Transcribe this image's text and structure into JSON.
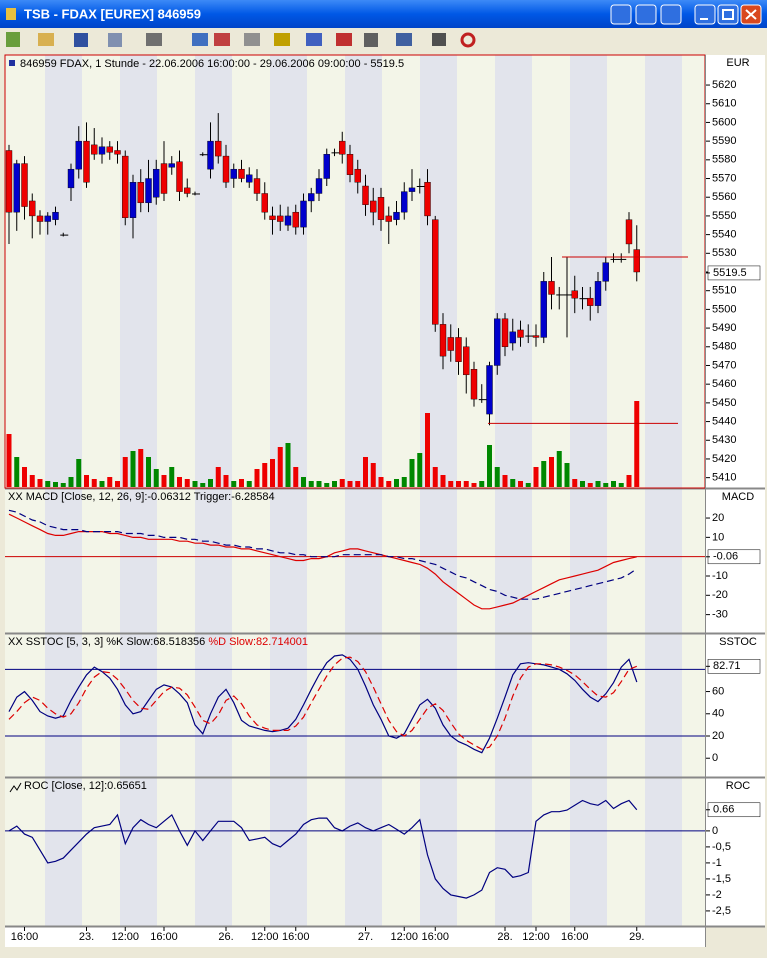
{
  "window": {
    "title": "TSB - FDAX [EUREX] 846959"
  },
  "chart_data": [
    {
      "type": "candlestick",
      "title": "846959  FDAX, 1 Stunde - 22.06.2006 16:00:00 - 29.06.2006 09:00:00 - 5519.5",
      "axis_label": "EUR",
      "up_color": "#0000cc",
      "down_color": "#ee0000",
      "volume_up_color": "#008800",
      "volume_down_color": "#ee0000",
      "categories": [
        null,
        null,
        "16:00",
        null,
        null,
        null,
        null,
        null,
        null,
        null,
        "23.",
        null,
        null,
        null,
        null,
        "12:00",
        null,
        null,
        null,
        null,
        "16:00",
        null,
        null,
        null,
        null,
        null,
        null,
        null,
        "26.",
        null,
        null,
        null,
        null,
        "12:00",
        null,
        null,
        null,
        "16:00",
        null,
        null,
        null,
        null,
        null,
        null,
        null,
        null,
        "27.",
        null,
        null,
        null,
        null,
        "12:00",
        null,
        null,
        null,
        "16:00",
        null,
        null,
        null,
        null,
        null,
        null,
        null,
        null,
        "28.",
        null,
        null,
        null,
        "12:00",
        null,
        null,
        null,
        null,
        "16:00",
        null,
        null,
        null,
        null,
        null,
        null,
        null,
        "29."
      ],
      "open": [
        5585,
        5552,
        5578,
        5558,
        5550,
        5547,
        5548,
        5540,
        5565,
        5575,
        5590,
        5588,
        5583,
        5587,
        5585,
        5582,
        5549,
        5568,
        5557,
        5560,
        5578,
        5576,
        5579,
        5565,
        5562,
        5583,
        5575,
        5590,
        5582,
        5570,
        5575,
        5568,
        5570,
        5562,
        5550,
        5550,
        5545,
        5552,
        5544,
        5558,
        5562,
        5570,
        5584,
        5590,
        5583,
        5575,
        5566,
        5558,
        5560,
        5550,
        5548,
        5552,
        5563,
        5566,
        5568,
        5548,
        5492,
        5485,
        5485,
        5480,
        5468,
        5452,
        5444,
        5470,
        5495,
        5482,
        5489,
        5486,
        5486,
        5485,
        5515,
        5508,
        5508,
        5510,
        5506,
        5506,
        5502,
        5515,
        5527,
        5527,
        5548,
        5532
      ],
      "high": [
        5588,
        5580,
        5582,
        5562,
        5553,
        5552,
        5555,
        5541,
        5578,
        5598,
        5600,
        5597,
        5592,
        5590,
        5590,
        5585,
        5572,
        5575,
        5580,
        5580,
        5590,
        5582,
        5585,
        5570,
        5563,
        5584,
        5600,
        5605,
        5588,
        5578,
        5580,
        5576,
        5575,
        5568,
        5555,
        5556,
        5555,
        5556,
        5562,
        5565,
        5575,
        5586,
        5586,
        5595,
        5588,
        5580,
        5572,
        5565,
        5565,
        5555,
        5558,
        5568,
        5575,
        5570,
        5575,
        5550,
        5498,
        5492,
        5490,
        5485,
        5472,
        5460,
        5472,
        5498,
        5498,
        5495,
        5494,
        5492,
        5492,
        5520,
        5528,
        5512,
        5528,
        5518,
        5512,
        5512,
        5520,
        5528,
        5530,
        5530,
        5552,
        5545
      ],
      "low": [
        5535,
        5542,
        5548,
        5538,
        5540,
        5540,
        5545,
        5539,
        5558,
        5570,
        5565,
        5580,
        5578,
        5580,
        5578,
        5545,
        5538,
        5552,
        5552,
        5556,
        5558,
        5572,
        5558,
        5560,
        5561,
        5582,
        5570,
        5578,
        5565,
        5565,
        5568,
        5565,
        5558,
        5548,
        5540,
        5542,
        5542,
        5540,
        5540,
        5552,
        5558,
        5566,
        5582,
        5578,
        5568,
        5562,
        5550,
        5545,
        5542,
        5535,
        5545,
        5548,
        5558,
        5562,
        5545,
        5488,
        5468,
        5472,
        5465,
        5455,
        5448,
        5450,
        5438,
        5465,
        5475,
        5478,
        5480,
        5482,
        5480,
        5482,
        5500,
        5500,
        5485,
        5498,
        5500,
        5494,
        5498,
        5510,
        5525,
        5525,
        5530,
        5515
      ],
      "close": [
        5552,
        5578,
        5555,
        5550,
        5547,
        5550,
        5552,
        5540,
        5575,
        5590,
        5568,
        5583,
        5587,
        5584,
        5583,
        5549,
        5568,
        5557,
        5570,
        5575,
        5562,
        5578,
        5563,
        5562,
        5562,
        5583,
        5590,
        5582,
        5568,
        5575,
        5570,
        5572,
        5562,
        5552,
        5548,
        5547,
        5550,
        5544,
        5558,
        5562,
        5570,
        5583,
        5584,
        5583,
        5572,
        5568,
        5556,
        5552,
        5548,
        5547,
        5552,
        5563,
        5565,
        5566,
        5550,
        5492,
        5475,
        5478,
        5472,
        5465,
        5452,
        5452,
        5470,
        5495,
        5480,
        5488,
        5485,
        5486,
        5485,
        5515,
        5508,
        5508,
        5508,
        5506,
        5506,
        5502,
        5515,
        5525,
        5527,
        5527,
        5535,
        5520
      ],
      "volume": [
        53,
        30,
        20,
        12,
        8,
        6,
        5,
        4,
        10,
        28,
        12,
        8,
        6,
        10,
        6,
        30,
        36,
        38,
        30,
        18,
        12,
        20,
        10,
        8,
        6,
        4,
        8,
        20,
        12,
        6,
        8,
        6,
        18,
        24,
        28,
        40,
        44,
        20,
        10,
        6,
        6,
        4,
        6,
        8,
        6,
        6,
        30,
        24,
        10,
        6,
        8,
        10,
        28,
        34,
        74,
        20,
        12,
        6,
        6,
        6,
        4,
        6,
        42,
        20,
        12,
        8,
        6,
        4,
        20,
        26,
        30,
        36,
        24,
        8,
        6,
        4,
        6,
        4,
        6,
        4,
        12,
        86
      ],
      "ylim": [
        5405,
        5635
      ],
      "yticks": [
        5410,
        5420,
        5430,
        5440,
        5450,
        5460,
        5470,
        5480,
        5490,
        5500,
        5510,
        5520,
        5530,
        5540,
        5550,
        5560,
        5570,
        5580,
        5590,
        5600,
        5610,
        5620
      ],
      "last_value": 5519.5,
      "levels": [
        5528,
        5439
      ],
      "level_color": "#cc0000"
    },
    {
      "type": "line",
      "axis_label": "MACD",
      "ylim": [
        -39,
        34
      ],
      "yticks": [
        20,
        10,
        -10,
        -20,
        -30
      ],
      "last_value": -0.06,
      "reference_lines": [
        0
      ],
      "reference_color": "#cc0000",
      "series": [
        {
          "name": "XX MACD [Close, 12, 26, 9]:-0.06312",
          "color": "#dd0000",
          "values": [
            22,
            20,
            18,
            16,
            14,
            12,
            11,
            11,
            12,
            13,
            13,
            13,
            13,
            12,
            12,
            11,
            10,
            10,
            9,
            9,
            9,
            9,
            8,
            8,
            7,
            7,
            6,
            6,
            5,
            5,
            4,
            4,
            3,
            2,
            1,
            0,
            -1,
            -2,
            -2,
            -1,
            -1,
            0,
            2,
            3,
            4,
            4,
            3,
            2,
            1,
            0,
            -1,
            -2,
            -3,
            -4,
            -6,
            -9,
            -13,
            -16,
            -19,
            -22,
            -25,
            -27,
            -27,
            -26,
            -25,
            -24,
            -22,
            -20,
            -18,
            -16,
            -14,
            -12,
            -11,
            -10,
            -9,
            -8,
            -7,
            -5,
            -3,
            -2,
            -1,
            -0.06
          ]
        },
        {
          "name": "Trigger:-6.28584",
          "color": "#000080",
          "dash": true,
          "values": [
            24,
            23,
            21,
            19,
            18,
            16,
            15,
            14,
            14,
            14,
            13,
            13,
            13,
            13,
            13,
            12,
            12,
            12,
            11,
            11,
            10,
            10,
            10,
            9,
            9,
            8,
            8,
            7,
            6,
            6,
            5,
            5,
            4,
            4,
            3,
            2,
            2,
            1,
            1,
            0,
            0,
            0,
            0,
            1,
            1,
            1,
            1,
            1,
            1,
            0,
            0,
            -1,
            -1,
            -2,
            -3,
            -4,
            -6,
            -8,
            -10,
            -11,
            -13,
            -15,
            -17,
            -18,
            -20,
            -21,
            -22,
            -22,
            -22,
            -21,
            -20,
            -19,
            -18,
            -17,
            -16,
            -15,
            -14,
            -13,
            -12,
            -11,
            -9,
            -6.29
          ]
        }
      ]
    },
    {
      "type": "line",
      "axis_label": "SSTOC",
      "ylim": [
        -16,
        110
      ],
      "yticks": [
        60,
        40,
        20,
        0
      ],
      "last_value": 82.71,
      "reference_lines": [
        80,
        20
      ],
      "reference_color": "#000080",
      "series": [
        {
          "name": "XX SSTOC [5, 3, 3] %K Slow:68.518356",
          "color": "#000080",
          "values": [
            42,
            55,
            60,
            52,
            42,
            38,
            36,
            38,
            52,
            64,
            75,
            82,
            78,
            72,
            62,
            48,
            40,
            42,
            52,
            62,
            66,
            64,
            58,
            50,
            30,
            22,
            40,
            55,
            62,
            50,
            34,
            29,
            27,
            25,
            24,
            25,
            27,
            35,
            48,
            62,
            75,
            86,
            92,
            93,
            89,
            80,
            65,
            48,
            35,
            20,
            18,
            22,
            35,
            48,
            53,
            45,
            30,
            20,
            15,
            12,
            8,
            5,
            18,
            36,
            55,
            75,
            85,
            86,
            85,
            84,
            82,
            80,
            76,
            70,
            62,
            55,
            51,
            58,
            68,
            82,
            89,
            68.52
          ]
        },
        {
          "name": "%D Slow:82.714001",
          "color": "#dd0000",
          "legend_color": "#dd0000",
          "dash": true,
          "values": [
            35,
            42,
            50,
            55,
            52,
            45,
            40,
            37,
            40,
            50,
            63,
            73,
            78,
            77,
            71,
            62,
            52,
            45,
            44,
            52,
            60,
            64,
            63,
            57,
            46,
            34,
            31,
            39,
            52,
            56,
            49,
            38,
            30,
            27,
            25,
            25,
            25,
            29,
            37,
            50,
            62,
            74,
            84,
            90,
            91,
            87,
            78,
            64,
            49,
            34,
            24,
            20,
            25,
            35,
            45,
            49,
            43,
            32,
            22,
            16,
            12,
            8,
            10,
            20,
            36,
            56,
            72,
            82,
            85,
            85,
            84,
            82,
            79,
            75,
            69,
            62,
            56,
            55,
            59,
            69,
            80,
            82.71
          ]
        }
      ]
    },
    {
      "type": "line",
      "axis_label": "ROC",
      "ylim": [
        -2.94,
        1.59
      ],
      "yticks": [
        0,
        {
          "value": -0.5,
          "label": "-0,5"
        },
        -1,
        {
          "value": -1.5,
          "label": "-1,5"
        },
        -2,
        {
          "value": -2.5,
          "label": "-2,5"
        }
      ],
      "last_value": 0.66,
      "reference_lines": [
        0
      ],
      "reference_color": "#000080",
      "series": [
        {
          "name": "ROC [Close, 12]:0.65651",
          "color": "#000080",
          "values": [
            0,
            0.15,
            -0.1,
            -0.2,
            -0.6,
            -1,
            -0.95,
            -0.85,
            -0.6,
            -0.35,
            -0.1,
            0.1,
            0.15,
            0.2,
            0.5,
            -0.4,
            0.1,
            0.35,
            0.2,
            0.1,
            0.3,
            0.5,
            0,
            -0.45,
            0,
            -0.3,
            0,
            0.3,
            0.3,
            0.3,
            0.1,
            -0.3,
            -0.25,
            -0.2,
            -0.4,
            -0.5,
            -0.3,
            -0.1,
            0.2,
            0.35,
            0.4,
            0.4,
            0.1,
            0,
            0.15,
            0.25,
            0.1,
            0,
            0.1,
            0.2,
            0.05,
            -0.1,
            0.1,
            0.35,
            -0.75,
            -1.5,
            -1.8,
            -2,
            -2.05,
            -2.1,
            -2,
            -1.85,
            -1.3,
            -1.15,
            -1.2,
            -1.45,
            -1.4,
            -1.3,
            0.3,
            0.5,
            0.6,
            0.6,
            0.65,
            0.8,
            0.95,
            0.85,
            0.8,
            0.95,
            0.7,
            0.85,
            0.95,
            0.66
          ]
        }
      ]
    }
  ]
}
